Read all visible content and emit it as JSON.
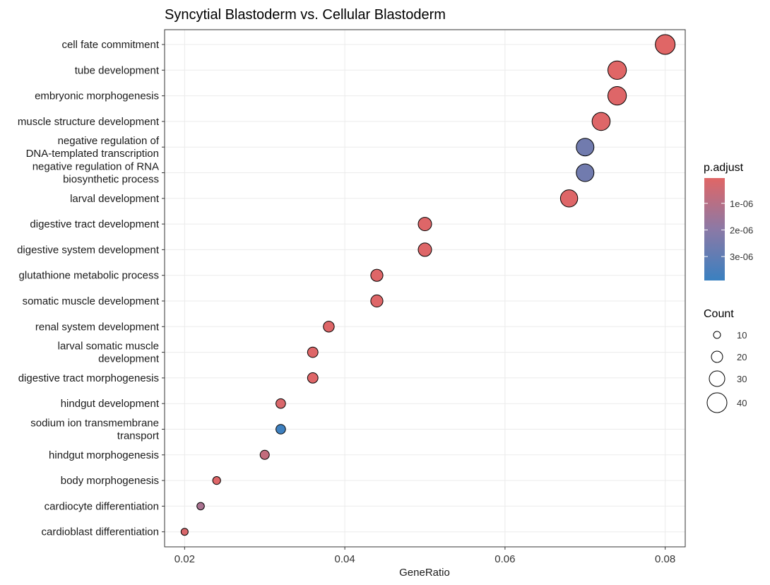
{
  "chart_data": {
    "type": "scatter",
    "title": "Syncytial Blastoderm vs. Cellular Blastoderm",
    "xlabel": "GeneRatio",
    "ylabel": "",
    "xlim": [
      0.0175,
      0.0825
    ],
    "xticks": [
      0.02,
      0.04,
      0.06,
      0.08
    ],
    "xtick_labels": [
      "0.02",
      "0.04",
      "0.06",
      "0.08"
    ],
    "grid": true,
    "categories": [
      {
        "lines": [
          "cell fate commitment"
        ],
        "gene_ratio": 0.08,
        "count": 40,
        "p_adjust": 5e-08
      },
      {
        "lines": [
          "tube development"
        ],
        "gene_ratio": 0.074,
        "count": 37,
        "p_adjust": 5e-08
      },
      {
        "lines": [
          "embryonic morphogenesis"
        ],
        "gene_ratio": 0.074,
        "count": 37,
        "p_adjust": 1e-07
      },
      {
        "lines": [
          "muscle structure development"
        ],
        "gene_ratio": 0.072,
        "count": 36,
        "p_adjust": 1e-07
      },
      {
        "lines": [
          "negative regulation of",
          "DNA-templated transcription"
        ],
        "gene_ratio": 0.07,
        "count": 35,
        "p_adjust": 2.6e-06
      },
      {
        "lines": [
          "negative regulation of RNA",
          "biosynthetic process"
        ],
        "gene_ratio": 0.07,
        "count": 35,
        "p_adjust": 2.6e-06
      },
      {
        "lines": [
          "larval development"
        ],
        "gene_ratio": 0.068,
        "count": 34,
        "p_adjust": 1e-07
      },
      {
        "lines": [
          "digestive tract development"
        ],
        "gene_ratio": 0.05,
        "count": 25,
        "p_adjust": 1e-07
      },
      {
        "lines": [
          "digestive system development"
        ],
        "gene_ratio": 0.05,
        "count": 25,
        "p_adjust": 1e-07
      },
      {
        "lines": [
          "glutathione metabolic process"
        ],
        "gene_ratio": 0.044,
        "count": 22,
        "p_adjust": 1e-07
      },
      {
        "lines": [
          "somatic muscle development"
        ],
        "gene_ratio": 0.044,
        "count": 22,
        "p_adjust": 1e-07
      },
      {
        "lines": [
          "renal system development"
        ],
        "gene_ratio": 0.038,
        "count": 19,
        "p_adjust": 1e-07
      },
      {
        "lines": [
          "larval somatic muscle",
          "development"
        ],
        "gene_ratio": 0.036,
        "count": 18,
        "p_adjust": 1e-07
      },
      {
        "lines": [
          "digestive tract morphogenesis"
        ],
        "gene_ratio": 0.036,
        "count": 18,
        "p_adjust": 1e-07
      },
      {
        "lines": [
          "hindgut development"
        ],
        "gene_ratio": 0.032,
        "count": 16,
        "p_adjust": 2e-07
      },
      {
        "lines": [
          "sodium ion transmembrane",
          "transport"
        ],
        "gene_ratio": 0.032,
        "count": 16,
        "p_adjust": 3.8e-06
      },
      {
        "lines": [
          "hindgut morphogenesis"
        ],
        "gene_ratio": 0.03,
        "count": 15,
        "p_adjust": 7e-07
      },
      {
        "lines": [
          "body morphogenesis"
        ],
        "gene_ratio": 0.024,
        "count": 12,
        "p_adjust": 1e-07
      },
      {
        "lines": [
          "cardiocyte differentiation"
        ],
        "gene_ratio": 0.022,
        "count": 11,
        "p_adjust": 1.3e-06
      },
      {
        "lines": [
          "cardioblast differentiation"
        ],
        "gene_ratio": 0.02,
        "count": 10,
        "p_adjust": 2e-07
      }
    ],
    "color_legend": {
      "title": "p.adjust",
      "low_color": "#e06666",
      "mid_color": "#8b79a6",
      "high_color": "#3a80c0",
      "range": [
        5e-08,
        3.9e-06
      ],
      "ticks": [
        1e-06,
        2e-06,
        3e-06
      ],
      "tick_labels": [
        "1e-06",
        "2e-06",
        "3e-06"
      ]
    },
    "size_legend": {
      "title": "Count",
      "range": [
        10,
        40
      ],
      "values": [
        10,
        20,
        30,
        40
      ],
      "labels": [
        "10",
        "20",
        "30",
        "40"
      ]
    }
  }
}
